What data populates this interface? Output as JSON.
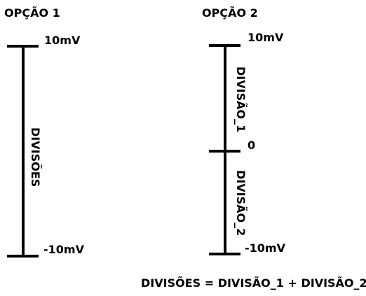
{
  "option1": {
    "title": "OPÇÃO 1",
    "top_label": "10mV",
    "bottom_label": "-10mV",
    "division_label": "DIVISÕES"
  },
  "option2": {
    "title": "OPÇÃO 2",
    "top_label": "10mV",
    "middle_label": "0",
    "bottom_label": "-10mV",
    "division1_label": "DIVISÃO_1",
    "division2_label": "DIVISÃO_2"
  },
  "formula": "DIVISÕES = DIVISÃO_1 + DIVISÃO_2",
  "colors": {
    "stroke": "#000000",
    "text": "#000000",
    "background": "#ffffff"
  }
}
